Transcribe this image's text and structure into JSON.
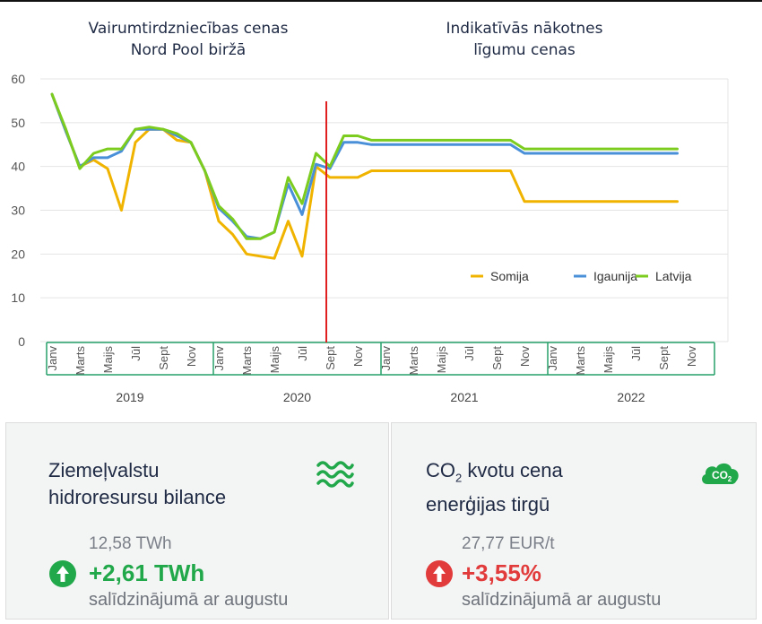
{
  "headers": {
    "left": "Vairumtirdzniecības cenas\nNord Pool biržā",
    "right": "Indikatīvās nākotnes\nlīgumu cenas"
  },
  "chart_data": {
    "type": "line",
    "yticks": [
      0,
      10,
      20,
      30,
      40,
      50,
      60
    ],
    "ylim": [
      0,
      60
    ],
    "month_labels": [
      "Janv",
      "",
      "Marts",
      "",
      "Maijs",
      "",
      "Jūl",
      "",
      "Sept",
      "",
      "Nov",
      "",
      "Janv",
      "",
      "Marts",
      "",
      "Maijs",
      "",
      "Jūl",
      "",
      "Sept",
      "",
      "Nov",
      "",
      "Janv",
      "",
      "Marts",
      "",
      "Maijs",
      "",
      "Jūl",
      "",
      "Sept",
      "",
      "Nov",
      "",
      "Janv",
      "",
      "Marts",
      "",
      "Maijs",
      "",
      "Jūl",
      "",
      "Sept",
      "",
      "Nov",
      ""
    ],
    "years": [
      "2019",
      "2020",
      "2021",
      "2022"
    ],
    "divider_month_index": 20,
    "colors": {
      "Somija": "#f0b400",
      "Igaunija": "#4a90d9",
      "Latvija": "#7ccc1f",
      "divider": "#e02020",
      "axis": "#27a06a"
    },
    "series": [
      {
        "name": "Somija",
        "color": "#f0b400",
        "points": [
          [
            0,
            56.5
          ],
          [
            1,
            48
          ],
          [
            2,
            40
          ],
          [
            3,
            41.5
          ],
          [
            4,
            39.5
          ],
          [
            5,
            30
          ],
          [
            6,
            45.5
          ],
          [
            7,
            48.5
          ],
          [
            8,
            48.5
          ],
          [
            9,
            46
          ],
          [
            10,
            45.5
          ],
          [
            11,
            39
          ],
          [
            12,
            27.5
          ],
          [
            13,
            24.5
          ],
          [
            14,
            20
          ],
          [
            15,
            19.5
          ],
          [
            16,
            19
          ],
          [
            17,
            27.5
          ],
          [
            18,
            19.5
          ],
          [
            19,
            40
          ],
          [
            20,
            37.5
          ],
          [
            21,
            37.5
          ],
          [
            22,
            37.5
          ],
          [
            23,
            39
          ],
          [
            24,
            39
          ],
          [
            33,
            39
          ],
          [
            34,
            32
          ],
          [
            45,
            32
          ]
        ]
      },
      {
        "name": "Igaunija",
        "color": "#4a90d9",
        "points": [
          [
            0,
            56.5
          ],
          [
            1,
            48
          ],
          [
            2,
            40
          ],
          [
            3,
            42
          ],
          [
            4,
            42
          ],
          [
            5,
            43.5
          ],
          [
            6,
            48.5
          ],
          [
            7,
            48.5
          ],
          [
            8,
            48.5
          ],
          [
            9,
            47
          ],
          [
            10,
            45.5
          ],
          [
            11,
            39
          ],
          [
            12,
            30.5
          ],
          [
            13,
            27.5
          ],
          [
            14,
            24
          ],
          [
            15,
            23.5
          ],
          [
            16,
            25
          ],
          [
            17,
            36
          ],
          [
            18,
            29
          ],
          [
            19,
            40.5
          ],
          [
            20,
            39.5
          ],
          [
            21,
            45.5
          ],
          [
            22,
            45.5
          ],
          [
            23,
            45
          ],
          [
            24,
            45
          ],
          [
            33,
            45
          ],
          [
            34,
            43
          ],
          [
            45,
            43
          ]
        ]
      },
      {
        "name": "Latvija",
        "color": "#7ccc1f",
        "points": [
          [
            0,
            56.5
          ],
          [
            1,
            48.5
          ],
          [
            2,
            39.5
          ],
          [
            3,
            43
          ],
          [
            4,
            44
          ],
          [
            5,
            44
          ],
          [
            6,
            48.5
          ],
          [
            7,
            49
          ],
          [
            8,
            48.5
          ],
          [
            9,
            47.5
          ],
          [
            10,
            45.5
          ],
          [
            11,
            39
          ],
          [
            12,
            31
          ],
          [
            13,
            28
          ],
          [
            14,
            23.5
          ],
          [
            15,
            23.5
          ],
          [
            16,
            25
          ],
          [
            17,
            37.5
          ],
          [
            18,
            31.5
          ],
          [
            19,
            43
          ],
          [
            20,
            40
          ],
          [
            21,
            47
          ],
          [
            22,
            47
          ],
          [
            23,
            46
          ],
          [
            24,
            46
          ],
          [
            33,
            46
          ],
          [
            34,
            44
          ],
          [
            45,
            44
          ]
        ]
      }
    ]
  },
  "panels": {
    "hydro": {
      "title": "Ziemeļvalstu\nhidroresursu bilance",
      "base": "12,58 TWh",
      "change": "+2,61 TWh",
      "note": "salīdzinājumā ar augustu",
      "icon": "waves-icon",
      "trend_icon": "arrow-up-icon"
    },
    "co2": {
      "title_prefix": "CO",
      "title_sub": "2",
      "title_rest": " kvotu cena",
      "title_line2": "enerģijas tirgū",
      "base": "27,77 EUR/t",
      "change": "+3,55%",
      "note": "salīdzinājumā ar augustu",
      "icon_label": "CO",
      "icon_sub": "2",
      "icon": "co2-cloud-icon",
      "trend_icon": "arrow-up-icon"
    }
  }
}
